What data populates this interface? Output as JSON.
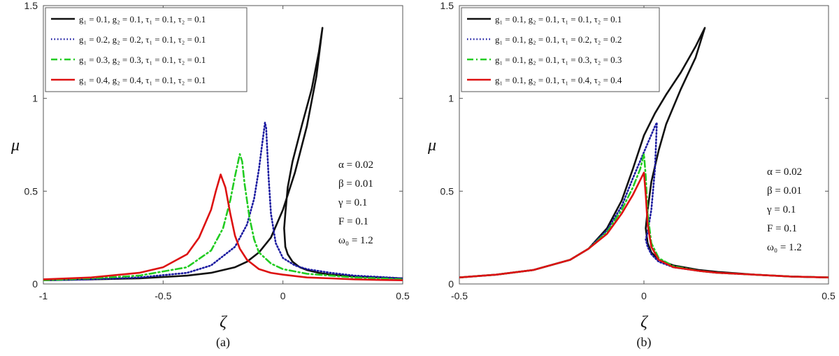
{
  "chart_data": [
    {
      "type": "line",
      "caption": "(a)",
      "xlabel": "ζ",
      "ylabel": "μ",
      "xlim": [
        -1,
        0.5
      ],
      "ylim": [
        0,
        1.5
      ],
      "xticks": [
        -1,
        -0.5,
        0,
        0.5
      ],
      "xtick_labels": [
        "-1",
        "-0.5",
        "0",
        "0.5"
      ],
      "yticks": [
        0,
        0.5,
        1,
        1.5
      ],
      "ytick_labels": [
        "0",
        "0.5",
        "1",
        "1.5"
      ],
      "legend_position": "top-left",
      "params": [
        "α = 0.02",
        "β = 0.01",
        "γ = 0.1",
        "F = 0.1",
        "ω₀ = 1.2"
      ],
      "series": [
        {
          "name": "g₁ = 0.1, g₂ = 0.1, τ₁ = 0.1, τ₂ = 0.1",
          "color": "#111111",
          "dash": "solid",
          "x": [
            -1,
            -0.8,
            -0.6,
            -0.4,
            -0.3,
            -0.2,
            -0.15,
            -0.1,
            -0.05,
            0,
            0.05,
            0.1,
            0.14,
            0.165,
            0.15,
            0.12,
            0.08,
            0.04,
            0.02,
            0.01,
            0.005,
            0.01,
            0.02,
            0.04,
            0.07,
            0.1,
            0.15,
            0.2,
            0.3,
            0.4,
            0.5
          ],
          "y": [
            0.02,
            0.025,
            0.03,
            0.045,
            0.06,
            0.09,
            0.12,
            0.17,
            0.25,
            0.4,
            0.6,
            0.85,
            1.12,
            1.38,
            1.25,
            1.05,
            0.86,
            0.66,
            0.52,
            0.38,
            0.3,
            0.2,
            0.16,
            0.12,
            0.09,
            0.075,
            0.06,
            0.05,
            0.04,
            0.035,
            0.03
          ]
        },
        {
          "name": "g₁ = 0.2, g₂ = 0.2, τ₁ = 0.1, τ₂ = 0.1",
          "color": "#1a1aa0",
          "dash": "dotted",
          "x": [
            -1,
            -0.8,
            -0.6,
            -0.4,
            -0.3,
            -0.2,
            -0.15,
            -0.12,
            -0.1,
            -0.09,
            -0.08,
            -0.075,
            -0.07,
            -0.06,
            -0.05,
            -0.03,
            0,
            0.05,
            0.1,
            0.2,
            0.3,
            0.4,
            0.5
          ],
          "y": [
            0.02,
            0.025,
            0.035,
            0.06,
            0.1,
            0.2,
            0.32,
            0.46,
            0.62,
            0.72,
            0.82,
            0.87,
            0.84,
            0.58,
            0.38,
            0.22,
            0.14,
            0.1,
            0.08,
            0.06,
            0.045,
            0.038,
            0.03
          ]
        },
        {
          "name": "g₁ = 0.3, g₂ = 0.3, τ₁ = 0.1, τ₂ = 0.1",
          "color": "#22cc22",
          "dash": "dashdot",
          "x": [
            -1,
            -0.8,
            -0.6,
            -0.4,
            -0.3,
            -0.25,
            -0.22,
            -0.2,
            -0.18,
            -0.17,
            -0.16,
            -0.14,
            -0.12,
            -0.1,
            -0.05,
            0,
            0.1,
            0.2,
            0.3,
            0.4,
            0.5
          ],
          "y": [
            0.02,
            0.03,
            0.045,
            0.09,
            0.18,
            0.3,
            0.45,
            0.58,
            0.7,
            0.66,
            0.54,
            0.36,
            0.24,
            0.17,
            0.11,
            0.08,
            0.055,
            0.045,
            0.035,
            0.03,
            0.025
          ]
        },
        {
          "name": "g₁ = 0.4, g₂ = 0.4, τ₁ = 0.1, τ₂ = 0.1",
          "color": "#dd1111",
          "dash": "solid",
          "x": [
            -1,
            -0.8,
            -0.6,
            -0.5,
            -0.4,
            -0.35,
            -0.3,
            -0.28,
            -0.26,
            -0.24,
            -0.22,
            -0.2,
            -0.18,
            -0.15,
            -0.1,
            -0.05,
            0,
            0.1,
            0.2,
            0.3,
            0.4,
            0.5
          ],
          "y": [
            0.025,
            0.035,
            0.06,
            0.09,
            0.16,
            0.25,
            0.4,
            0.5,
            0.59,
            0.52,
            0.38,
            0.26,
            0.19,
            0.13,
            0.08,
            0.06,
            0.05,
            0.035,
            0.03,
            0.025,
            0.022,
            0.02
          ]
        }
      ]
    },
    {
      "type": "line",
      "caption": "(b)",
      "xlabel": "ζ",
      "ylabel": "μ",
      "xlim": [
        -0.5,
        0.5
      ],
      "ylim": [
        0,
        1.5
      ],
      "xticks": [
        -0.5,
        0,
        0.5
      ],
      "xtick_labels": [
        "-0.5",
        "0",
        "0.5"
      ],
      "yticks": [
        0,
        0.5,
        1,
        1.5
      ],
      "ytick_labels": [
        "0",
        "0.5",
        "1",
        "1.5"
      ],
      "legend_position": "top-left",
      "params": [
        "α = 0.02",
        "β = 0.01",
        "γ = 0.1",
        "F = 0.1",
        "ω₀ = 1.2"
      ],
      "series": [
        {
          "name": "g₁ = 0.1, g₂ = 0.1, τ₁ = 0.1, τ₂ = 0.1",
          "color": "#111111",
          "dash": "solid",
          "x": [
            -0.5,
            -0.4,
            -0.3,
            -0.2,
            -0.15,
            -0.1,
            -0.06,
            -0.03,
            0,
            0.03,
            0.06,
            0.1,
            0.14,
            0.165,
            0.14,
            0.1,
            0.06,
            0.04,
            0.02,
            0.01,
            0.005,
            0.01,
            0.02,
            0.04,
            0.08,
            0.15,
            0.2,
            0.3,
            0.4,
            0.5
          ],
          "y": [
            0.035,
            0.05,
            0.075,
            0.13,
            0.19,
            0.3,
            0.45,
            0.62,
            0.8,
            0.92,
            1.02,
            1.14,
            1.28,
            1.38,
            1.22,
            1.05,
            0.86,
            0.72,
            0.55,
            0.4,
            0.3,
            0.22,
            0.17,
            0.13,
            0.1,
            0.075,
            0.065,
            0.05,
            0.04,
            0.035
          ]
        },
        {
          "name": "g₁ = 0.1, g₂ = 0.1, τ₁ = 0.2, τ₂ = 0.2",
          "color": "#1a1aa0",
          "dash": "dotted",
          "x": [
            -0.5,
            -0.4,
            -0.3,
            -0.2,
            -0.15,
            -0.1,
            -0.06,
            -0.03,
            0,
            0.015,
            0.03,
            0.035,
            0.03,
            0.02,
            0.01,
            0.005,
            0.01,
            0.02,
            0.04,
            0.08,
            0.15,
            0.2,
            0.3,
            0.4,
            0.5
          ],
          "y": [
            0.035,
            0.05,
            0.075,
            0.13,
            0.19,
            0.29,
            0.42,
            0.57,
            0.71,
            0.78,
            0.85,
            0.87,
            0.62,
            0.4,
            0.28,
            0.24,
            0.2,
            0.16,
            0.12,
            0.09,
            0.07,
            0.06,
            0.05,
            0.04,
            0.035
          ]
        },
        {
          "name": "g₁ = 0.1, g₂ = 0.1, τ₁ = 0.3, τ₂ = 0.3",
          "color": "#22cc22",
          "dash": "dashdot",
          "x": [
            -0.5,
            -0.4,
            -0.3,
            -0.2,
            -0.15,
            -0.1,
            -0.06,
            -0.03,
            -0.01,
            0,
            0.005,
            0.01,
            0.02,
            0.04,
            0.08,
            0.15,
            0.2,
            0.3,
            0.4,
            0.5
          ],
          "y": [
            0.035,
            0.05,
            0.075,
            0.13,
            0.19,
            0.28,
            0.4,
            0.52,
            0.62,
            0.7,
            0.58,
            0.38,
            0.22,
            0.14,
            0.095,
            0.07,
            0.06,
            0.05,
            0.04,
            0.035
          ]
        },
        {
          "name": "g₁ = 0.1, g₂ = 0.1, τ₁ = 0.4, τ₂ = 0.4",
          "color": "#dd1111",
          "dash": "solid",
          "x": [
            -0.5,
            -0.4,
            -0.3,
            -0.2,
            -0.15,
            -0.1,
            -0.06,
            -0.03,
            -0.01,
            0,
            0.005,
            0.01,
            0.02,
            0.04,
            0.08,
            0.15,
            0.2,
            0.3,
            0.4,
            0.5
          ],
          "y": [
            0.035,
            0.05,
            0.075,
            0.13,
            0.19,
            0.27,
            0.38,
            0.48,
            0.56,
            0.6,
            0.48,
            0.32,
            0.2,
            0.13,
            0.09,
            0.07,
            0.06,
            0.05,
            0.04,
            0.035
          ]
        }
      ]
    }
  ]
}
